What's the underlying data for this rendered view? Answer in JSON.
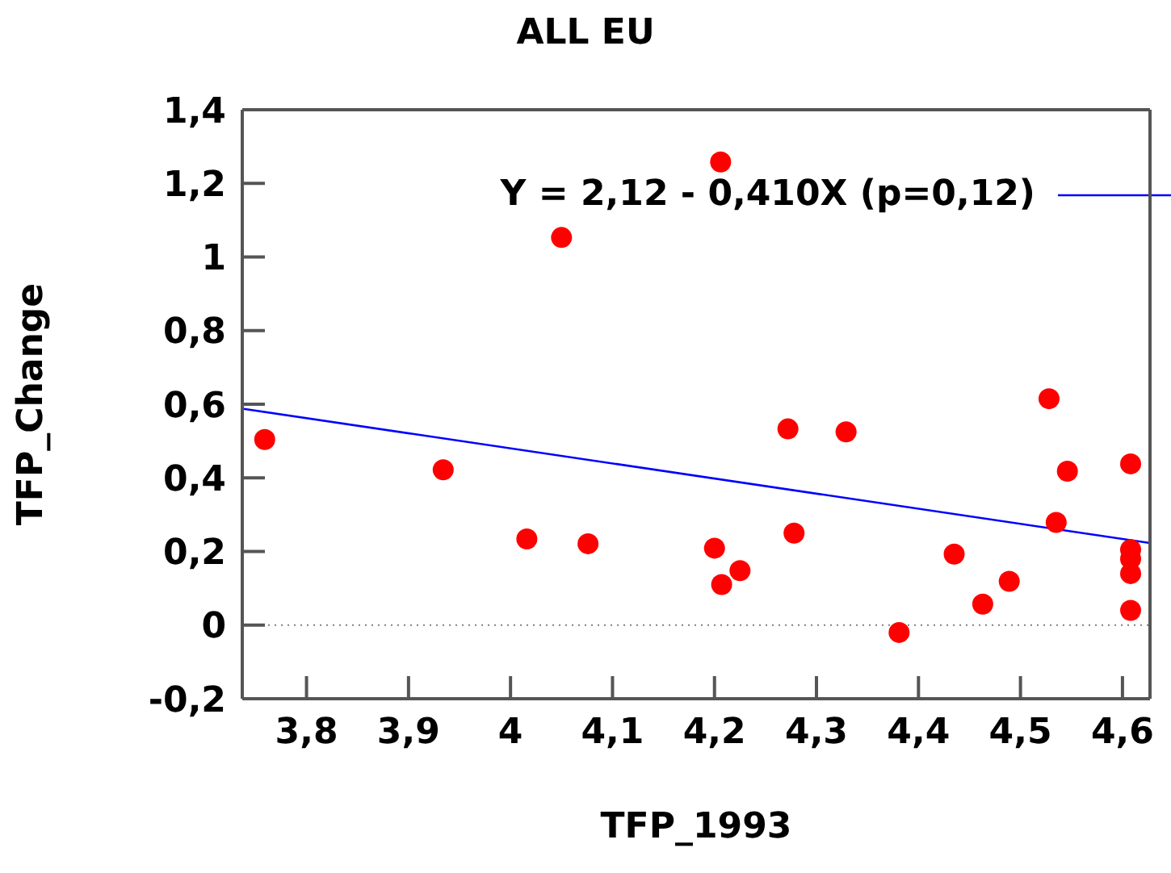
{
  "chart_data": {
    "type": "scatter",
    "title": "ALL EU",
    "xlabel": "TFP_1993",
    "ylabel": "TFP_Change",
    "xlim": [
      3.737,
      4.627
    ],
    "ylim": [
      -0.2,
      1.4
    ],
    "xticks": [
      {
        "value": 3.8,
        "label": "3,8"
      },
      {
        "value": 3.9,
        "label": "3,9"
      },
      4,
      {
        "value": 4.1,
        "label": "4,1"
      },
      {
        "value": 4.2,
        "label": "4,2"
      },
      {
        "value": 4.3,
        "label": "4,3"
      },
      {
        "value": 4.4,
        "label": "4,4"
      },
      {
        "value": 4.5,
        "label": "4,5"
      },
      {
        "value": 4.6,
        "label": "4,6"
      }
    ],
    "yticks": [
      {
        "value": -0.2,
        "label": "-0,2"
      },
      0,
      {
        "value": 0.2,
        "label": "0,2"
      },
      {
        "value": 0.4,
        "label": "0,4"
      },
      {
        "value": 0.6,
        "label": "0,6"
      },
      {
        "value": 0.8,
        "label": "0,8"
      },
      1,
      {
        "value": 1.2,
        "label": "1,2"
      },
      {
        "value": 1.4,
        "label": "1,4"
      }
    ],
    "legend": "top right",
    "marker": "circle",
    "ref_lines": [
      {
        "axis": "y",
        "value": 0,
        "color": "#808080",
        "line_style": "dotted"
      }
    ],
    "series": [
      {
        "color": "#ff0000",
        "x": [
          3.759,
          3.934,
          4.016,
          4.05,
          4.076,
          4.2,
          4.206,
          4.207,
          4.225,
          4.272,
          4.278,
          4.329,
          4.381,
          4.435,
          4.463,
          4.489,
          4.528,
          4.535,
          4.546,
          4.608,
          4.608,
          4.608,
          4.608,
          4.608
        ],
        "values": [
          0.504,
          0.422,
          0.234,
          1.053,
          0.221,
          0.209,
          1.258,
          0.11,
          0.148,
          0.533,
          0.25,
          0.525,
          -0.02,
          0.193,
          0.057,
          0.119,
          0.615,
          0.279,
          0.418,
          0.438,
          0.205,
          0.18,
          0.14,
          0.04
        ]
      },
      {
        "type": "line",
        "name": "Y = 2,12 - 0,410X (p=0,12)",
        "color": "#0000ff",
        "marker": "none",
        "line_style": "solid",
        "x": [
          3.737,
          4.627
        ],
        "values": [
          0.588,
          0.223
        ]
      }
    ]
  }
}
